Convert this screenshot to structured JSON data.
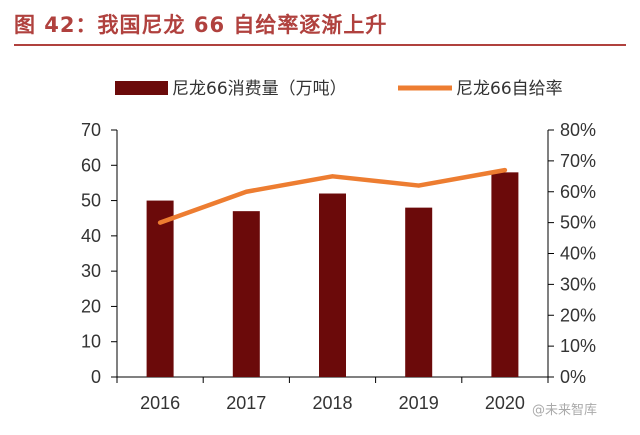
{
  "figure": {
    "title": "图 42：我国尼龙 66 自给率逐渐上升",
    "watermark": "@未来智库"
  },
  "colors": {
    "title": "#b0413e",
    "bar": "#6b0a0a",
    "line": "#ed7d31",
    "axis": "#000000"
  },
  "chart_data": {
    "type": "bar+line",
    "categories": [
      "2016",
      "2017",
      "2018",
      "2019",
      "2020"
    ],
    "series": [
      {
        "name": "尼龙66消费量（万吨）",
        "type": "bar",
        "axis": "left",
        "values": [
          50,
          47,
          52,
          48,
          58
        ]
      },
      {
        "name": "尼龙66自给率",
        "type": "line",
        "axis": "right",
        "values": [
          0.5,
          0.6,
          0.65,
          0.62,
          0.67
        ]
      }
    ],
    "y_left": {
      "min": 0,
      "max": 70,
      "ticks": [
        "0",
        "10",
        "20",
        "30",
        "40",
        "50",
        "60",
        "70"
      ]
    },
    "y_right": {
      "min": 0,
      "max": 0.8,
      "ticks": [
        "0%",
        "10%",
        "20%",
        "30%",
        "40%",
        "50%",
        "60%",
        "70%",
        "80%"
      ]
    },
    "legend_position": "top",
    "grid": false
  }
}
